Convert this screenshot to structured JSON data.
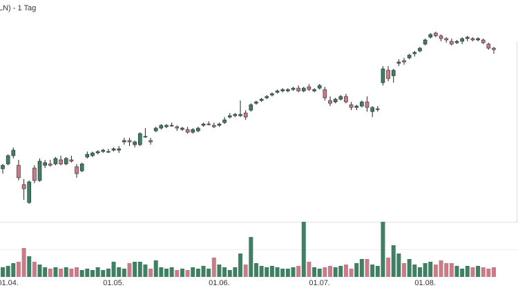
{
  "chart_data": {
    "type": "candlestick",
    "title": "LN) - 1 Tag",
    "categories": [
      null,
      "01.04.",
      null,
      null,
      null,
      null,
      null,
      null,
      null,
      null,
      null,
      null,
      null,
      null,
      null,
      null,
      null,
      null,
      null,
      null,
      null,
      "01.05.",
      null,
      null,
      null,
      null,
      null,
      null,
      null,
      null,
      null,
      null,
      null,
      null,
      null,
      null,
      null,
      null,
      null,
      null,
      null,
      "01.06.",
      null,
      null,
      null,
      null,
      null,
      null,
      null,
      null,
      null,
      null,
      null,
      null,
      null,
      null,
      null,
      null,
      null,
      null,
      "01.07.",
      null,
      null,
      null,
      null,
      null,
      null,
      null,
      null,
      null,
      null,
      null,
      null,
      null,
      null,
      null,
      null,
      null,
      null,
      null,
      "01.08.",
      null,
      null,
      null,
      null,
      null,
      null,
      null,
      null,
      null,
      null,
      null,
      null,
      null
    ],
    "open": [
      65,
      72,
      84,
      70,
      42,
      16,
      66,
      48,
      70,
      72,
      72,
      78,
      72,
      78,
      68,
      62,
      82,
      84,
      88,
      90,
      90,
      92,
      92,
      104,
      106,
      100,
      100,
      112,
      106,
      120,
      124,
      126,
      128,
      126,
      122,
      122,
      118,
      120,
      128,
      130,
      128,
      128,
      132,
      140,
      142,
      142,
      146,
      150,
      160,
      164,
      168,
      172,
      176,
      178,
      178,
      180,
      182,
      178,
      184,
      178,
      182,
      180,
      164,
      162,
      166,
      170,
      158,
      154,
      156,
      162,
      148,
      152,
      190,
      208,
      200,
      218,
      222,
      226,
      232,
      236,
      246,
      256,
      262,
      258,
      254,
      250,
      248,
      250,
      254,
      254,
      252,
      252,
      246,
      240
    ],
    "high": [
      72,
      86,
      96,
      78,
      50,
      48,
      70,
      80,
      78,
      78,
      82,
      84,
      82,
      84,
      72,
      74,
      90,
      90,
      92,
      94,
      94,
      96,
      98,
      110,
      110,
      106,
      118,
      124,
      110,
      126,
      130,
      130,
      132,
      128,
      126,
      126,
      124,
      126,
      132,
      134,
      132,
      132,
      140,
      146,
      146,
      164,
      150,
      160,
      164,
      168,
      172,
      176,
      180,
      182,
      182,
      184,
      186,
      184,
      188,
      182,
      188,
      184,
      170,
      168,
      172,
      174,
      162,
      158,
      164,
      170,
      156,
      156,
      214,
      214,
      210,
      224,
      226,
      232,
      236,
      242,
      254,
      262,
      264,
      260,
      256,
      254,
      252,
      256,
      258,
      256,
      256,
      254,
      248,
      242
    ],
    "low": [
      58,
      70,
      80,
      48,
      20,
      14,
      44,
      46,
      66,
      68,
      70,
      70,
      70,
      74,
      52,
      60,
      80,
      82,
      86,
      88,
      88,
      90,
      88,
      100,
      98,
      96,
      98,
      110,
      100,
      118,
      122,
      124,
      126,
      120,
      120,
      116,
      116,
      118,
      126,
      128,
      124,
      126,
      130,
      138,
      140,
      140,
      136,
      148,
      158,
      162,
      166,
      170,
      174,
      176,
      176,
      178,
      176,
      176,
      178,
      176,
      180,
      164,
      156,
      160,
      164,
      160,
      150,
      150,
      154,
      148,
      140,
      148,
      186,
      192,
      190,
      214,
      216,
      224,
      228,
      234,
      244,
      254,
      256,
      250,
      248,
      244,
      246,
      246,
      250,
      250,
      250,
      246,
      238,
      232
    ],
    "close": [
      70,
      84,
      92,
      52,
      36,
      46,
      48,
      76,
      74,
      70,
      80,
      72,
      80,
      76,
      58,
      72,
      86,
      88,
      90,
      92,
      90,
      94,
      94,
      106,
      104,
      104,
      116,
      112,
      104,
      124,
      128,
      128,
      128,
      124,
      124,
      118,
      122,
      124,
      130,
      130,
      126,
      130,
      136,
      142,
      144,
      144,
      140,
      158,
      162,
      166,
      170,
      174,
      178,
      180,
      180,
      182,
      178,
      182,
      180,
      180,
      186,
      168,
      160,
      166,
      170,
      162,
      154,
      156,
      162,
      154,
      154,
      152,
      210,
      196,
      208,
      220,
      220,
      230,
      234,
      240,
      252,
      260,
      258,
      254,
      252,
      246,
      250,
      254,
      256,
      252,
      254,
      248,
      240,
      238
    ],
    "volume": [
      14,
      16,
      20,
      22,
      42,
      30,
      22,
      18,
      14,
      12,
      14,
      12,
      14,
      12,
      14,
      10,
      12,
      10,
      14,
      10,
      12,
      22,
      14,
      12,
      20,
      22,
      22,
      18,
      12,
      24,
      14,
      12,
      14,
      10,
      12,
      10,
      14,
      12,
      16,
      12,
      28,
      18,
      14,
      10,
      14,
      34,
      18,
      58,
      20,
      16,
      14,
      16,
      14,
      12,
      12,
      14,
      16,
      80,
      22,
      14,
      12,
      14,
      16,
      14,
      16,
      18,
      12,
      20,
      26,
      26,
      18,
      16,
      80,
      28,
      46,
      34,
      20,
      26,
      18,
      14,
      20,
      22,
      18,
      24,
      20,
      20,
      16,
      12,
      16,
      14,
      16,
      14,
      12,
      14
    ],
    "up_color": "#3f7f63",
    "down_color": "#c97b88",
    "ylim": [
      0,
      300
    ],
    "volume_ylim": [
      0,
      80
    ]
  }
}
